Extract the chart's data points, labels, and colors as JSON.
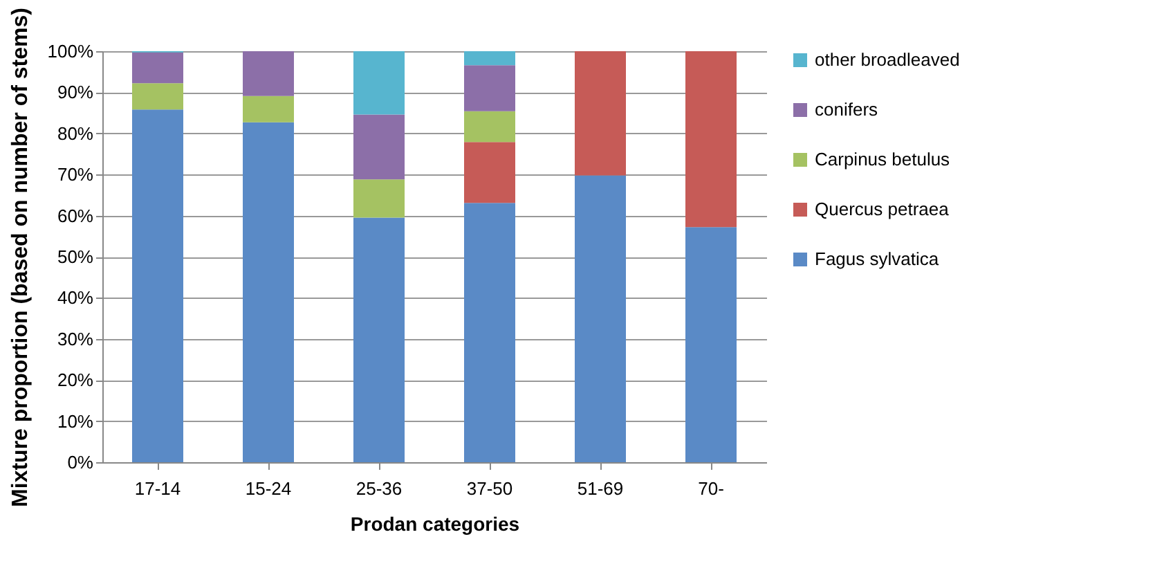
{
  "chart_data": {
    "type": "bar",
    "stacked": true,
    "xlabel": "Prodan categories",
    "ylabel": "Mixture proportion (based on number of stems)",
    "categories": [
      "17-14",
      "15-24",
      "25-36",
      "37-50",
      "51-69",
      "70-"
    ],
    "series": [
      {
        "name": "Fagus sylvatica",
        "color": "#5a8ac6",
        "values": [
          85.8,
          82.7,
          59.5,
          63.1,
          69.8,
          57.2
        ]
      },
      {
        "name": "Quercus petraea",
        "color": "#c65b57",
        "values": [
          0,
          0,
          0,
          14.8,
          30.2,
          42.8
        ]
      },
      {
        "name": "Carpinus betulus",
        "color": "#a5c262",
        "values": [
          6.4,
          6.4,
          9.3,
          7.5,
          0,
          0
        ]
      },
      {
        "name": "conifers",
        "color": "#8c6fa8",
        "values": [
          7.5,
          10.9,
          15.8,
          11.2,
          0,
          0
        ]
      },
      {
        "name": "other broadleaved",
        "color": "#57b5cf",
        "values": [
          0.3,
          0,
          15.4,
          3.4,
          0,
          0
        ]
      }
    ],
    "ylim": [
      0,
      100
    ],
    "yticks": [
      {
        "value": 0,
        "label": "0%"
      },
      {
        "value": 10,
        "label": "10%"
      },
      {
        "value": 20,
        "label": "20%"
      },
      {
        "value": 30,
        "label": "30%"
      },
      {
        "value": 40,
        "label": "40%"
      },
      {
        "value": 50,
        "label": "50%"
      },
      {
        "value": 60,
        "label": "60%"
      },
      {
        "value": 70,
        "label": "70%"
      },
      {
        "value": 80,
        "label": "80%"
      },
      {
        "value": 90,
        "label": "90%"
      },
      {
        "value": 100,
        "label": "100%"
      }
    ],
    "grid": "y",
    "legend": "right"
  }
}
